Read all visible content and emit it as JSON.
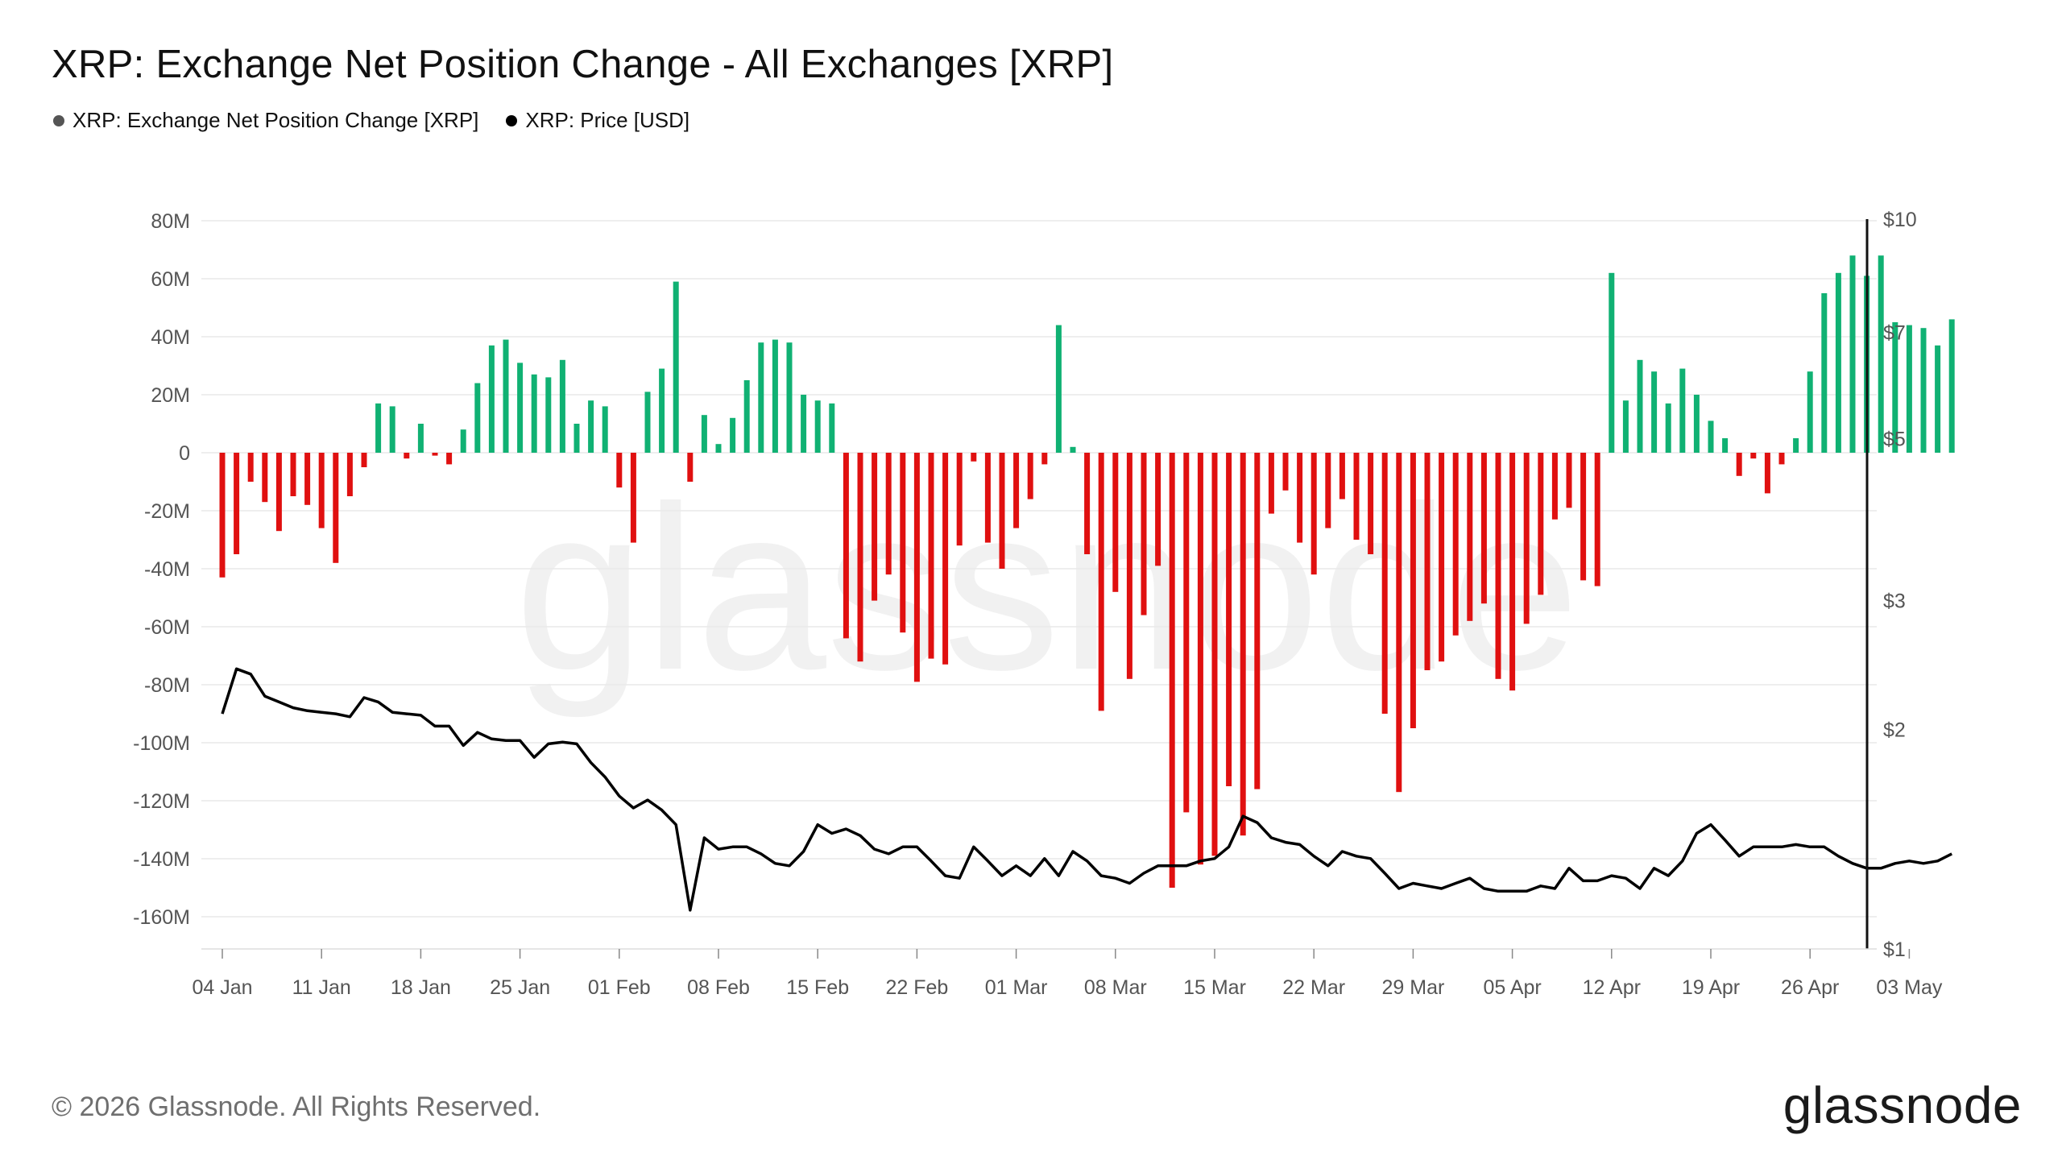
{
  "title": "XRP: Exchange Net Position Change - All Exchanges [XRP]",
  "legend": [
    {
      "label": "XRP: Exchange Net Position Change [XRP]",
      "color": "#555555"
    },
    {
      "label": "XRP: Price [USD]",
      "color": "#000000"
    }
  ],
  "footer": {
    "copyright": "© 2026 Glassnode. All Rights Reserved.",
    "logo": "glassnode",
    "watermark": "glassnode"
  },
  "colors": {
    "positive": "#10b173",
    "negative": "#e01010",
    "price_line": "#000000",
    "grid": "#e9e9e9"
  },
  "chart_data": {
    "type": "bar",
    "title": "XRP: Exchange Net Position Change - All Exchanges [XRP]",
    "x_start": "2026-01-04",
    "x_tick_labels": [
      "04 Jan",
      "11 Jan",
      "18 Jan",
      "25 Jan",
      "01 Feb",
      "08 Feb",
      "15 Feb",
      "22 Feb",
      "01 Mar",
      "08 Mar",
      "15 Mar",
      "22 Mar",
      "29 Mar",
      "05 Apr",
      "12 Apr",
      "19 Apr",
      "26 Apr",
      "03 May"
    ],
    "left_axis": {
      "ticks": [
        80,
        60,
        40,
        20,
        0,
        -20,
        -40,
        -60,
        -80,
        -100,
        -120,
        -140,
        -160
      ],
      "tick_labels": [
        "80M",
        "60M",
        "40M",
        "20M",
        "0",
        "-20M",
        "-40M",
        "-60M",
        "-80M",
        "-100M",
        "-120M",
        "-140M",
        "-160M"
      ],
      "unit": "M XRP",
      "range": [
        -170,
        80
      ]
    },
    "right_axis": {
      "scale": "log",
      "tick_values": [
        10,
        7,
        5,
        3,
        2,
        1
      ],
      "tick_labels": [
        "$10",
        "$7",
        "$5",
        "$3",
        "$2",
        "$1"
      ],
      "range": [
        1,
        10
      ]
    },
    "series": [
      {
        "name": "XRP: Exchange Net Position Change [XRP]",
        "unit": "M XRP",
        "values": [
          -43,
          -35,
          -10,
          -17,
          -27,
          -15,
          -18,
          -26,
          -38,
          -15,
          -5,
          17,
          16,
          -2,
          10,
          -1,
          -4,
          8,
          24,
          37,
          39,
          31,
          27,
          26,
          32,
          10,
          18,
          16,
          -12,
          -31,
          21,
          29,
          59,
          -10,
          13,
          3,
          12,
          25,
          38,
          39,
          38,
          20,
          18,
          17,
          -64,
          -72,
          -51,
          -42,
          -62,
          -79,
          -71,
          -73,
          -32,
          -3,
          -31,
          -40,
          -26,
          -16,
          -4,
          44,
          2,
          -35,
          -89,
          -48,
          -78,
          -56,
          -39,
          -150,
          -124,
          -142,
          -139,
          -115,
          -132,
          -116,
          -21,
          -13,
          -31,
          -42,
          -26,
          -16,
          -30,
          -35,
          -90,
          -117,
          -95,
          -75,
          -72,
          -63,
          -58,
          -52,
          -78,
          -82,
          -59,
          -49,
          -23,
          -19,
          -44,
          -46,
          62,
          18,
          32,
          28,
          17,
          29,
          20,
          11,
          5,
          -8,
          -2,
          -14,
          -4,
          5,
          28,
          55,
          62,
          68,
          61,
          68,
          45,
          44,
          43,
          37,
          46
        ]
      },
      {
        "name": "XRP: Price [USD]",
        "unit": "USD",
        "values": [
          2.1,
          2.42,
          2.38,
          2.22,
          2.18,
          2.14,
          2.12,
          2.11,
          2.1,
          2.08,
          2.21,
          2.18,
          2.11,
          2.1,
          2.09,
          2.02,
          2.02,
          1.9,
          1.98,
          1.94,
          1.93,
          1.93,
          1.83,
          1.91,
          1.92,
          1.91,
          1.8,
          1.72,
          1.62,
          1.56,
          1.6,
          1.55,
          1.48,
          1.13,
          1.42,
          1.37,
          1.38,
          1.38,
          1.35,
          1.31,
          1.3,
          1.36,
          1.48,
          1.44,
          1.46,
          1.43,
          1.37,
          1.35,
          1.38,
          1.38,
          1.32,
          1.26,
          1.25,
          1.38,
          1.32,
          1.26,
          1.3,
          1.26,
          1.33,
          1.26,
          1.36,
          1.32,
          1.26,
          1.25,
          1.23,
          1.27,
          1.3,
          1.3,
          1.3,
          1.32,
          1.33,
          1.38,
          1.52,
          1.49,
          1.42,
          1.4,
          1.39,
          1.34,
          1.3,
          1.36,
          1.34,
          1.33,
          1.27,
          1.21,
          1.23,
          1.22,
          1.21,
          1.23,
          1.25,
          1.21,
          1.2,
          1.2,
          1.2,
          1.22,
          1.21,
          1.29,
          1.24,
          1.24,
          1.26,
          1.25,
          1.21,
          1.29,
          1.26,
          1.32,
          1.44,
          1.48,
          1.41,
          1.34,
          1.38,
          1.38,
          1.38,
          1.39,
          1.38,
          1.38,
          1.34,
          1.31,
          1.29,
          1.29,
          1.31,
          1.32,
          1.31,
          1.32,
          1.35
        ]
      }
    ],
    "grid": true,
    "legend_position": "top-left"
  }
}
